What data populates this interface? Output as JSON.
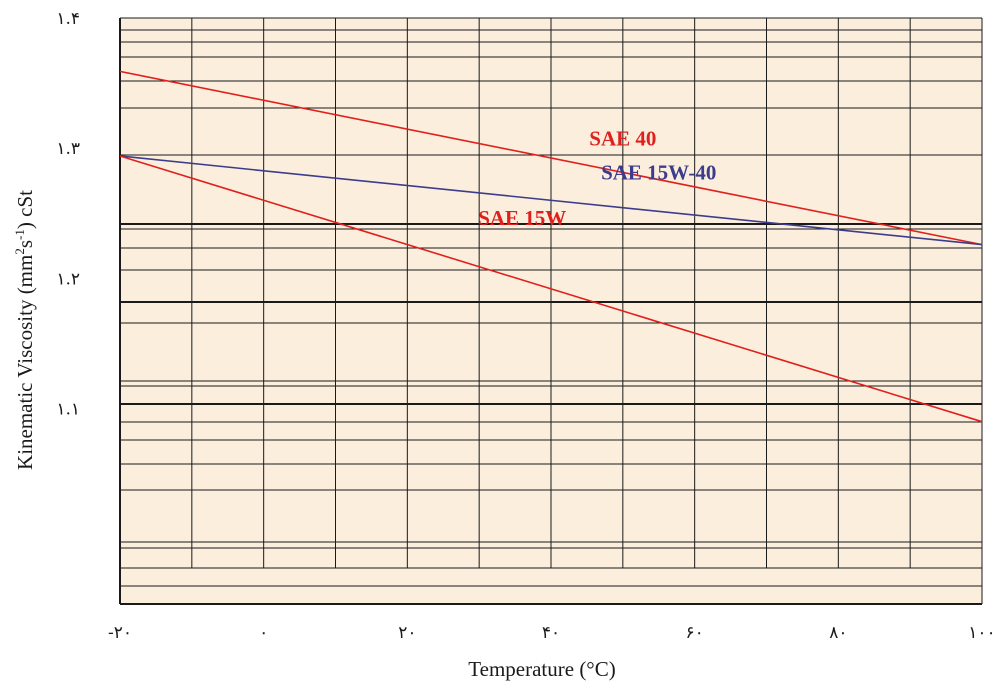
{
  "chart_data": {
    "type": "line",
    "title": "",
    "xlabel": "Temperature (°C)",
    "ylabel": {
      "prefix": "Kinematic Viscosity (mm",
      "sup1": "2",
      "mid": "s",
      "sup2": "-1",
      "suffix": ") cSt"
    },
    "xlim": [
      -20,
      100
    ],
    "ylim": [
      0.95,
      1.4
    ],
    "x_ticks": [
      {
        "value": -20,
        "label": "-۲۰"
      },
      {
        "value": 0,
        "label": "۰"
      },
      {
        "value": 20,
        "label": "۲۰"
      },
      {
        "value": 40,
        "label": "۴۰"
      },
      {
        "value": 60,
        "label": "۶۰"
      },
      {
        "value": 80,
        "label": "۸۰"
      },
      {
        "value": 100,
        "label": "۱۰۰"
      }
    ],
    "y_ticks": [
      {
        "value": 1.1,
        "label": "۱.۱"
      },
      {
        "value": 1.2,
        "label": "۱.۲"
      },
      {
        "value": 1.3,
        "label": "۱.۳"
      },
      {
        "value": 1.4,
        "label": "۱.۴"
      }
    ],
    "grid": true,
    "series": [
      {
        "name": "SAE 40",
        "color": "#e0201c",
        "x": [
          -20,
          100
        ],
        "y": [
          1.359,
          1.226
        ]
      },
      {
        "name": "SAE 15W-40",
        "color": "#3c3c8c",
        "x": [
          -20,
          100
        ],
        "y": [
          1.294,
          1.226
        ]
      },
      {
        "name": "SAE 15W",
        "color": "#e0201c",
        "x": [
          -20,
          100
        ],
        "y": [
          1.294,
          1.09
        ]
      }
    ],
    "annotations": [
      {
        "text": "SAE 40",
        "color": "#e0201c",
        "at_x": 50,
        "at_y": 1.302
      },
      {
        "text": "SAE 15W-40",
        "color": "#3c3c8c",
        "at_x": 55,
        "at_y": 1.276
      },
      {
        "text": "SAE 15W",
        "color": "#e0201c",
        "at_x": 36,
        "at_y": 1.241
      }
    ],
    "colors": {
      "plot_background": "#fbeedd",
      "grid": "#1a1a1a"
    }
  }
}
